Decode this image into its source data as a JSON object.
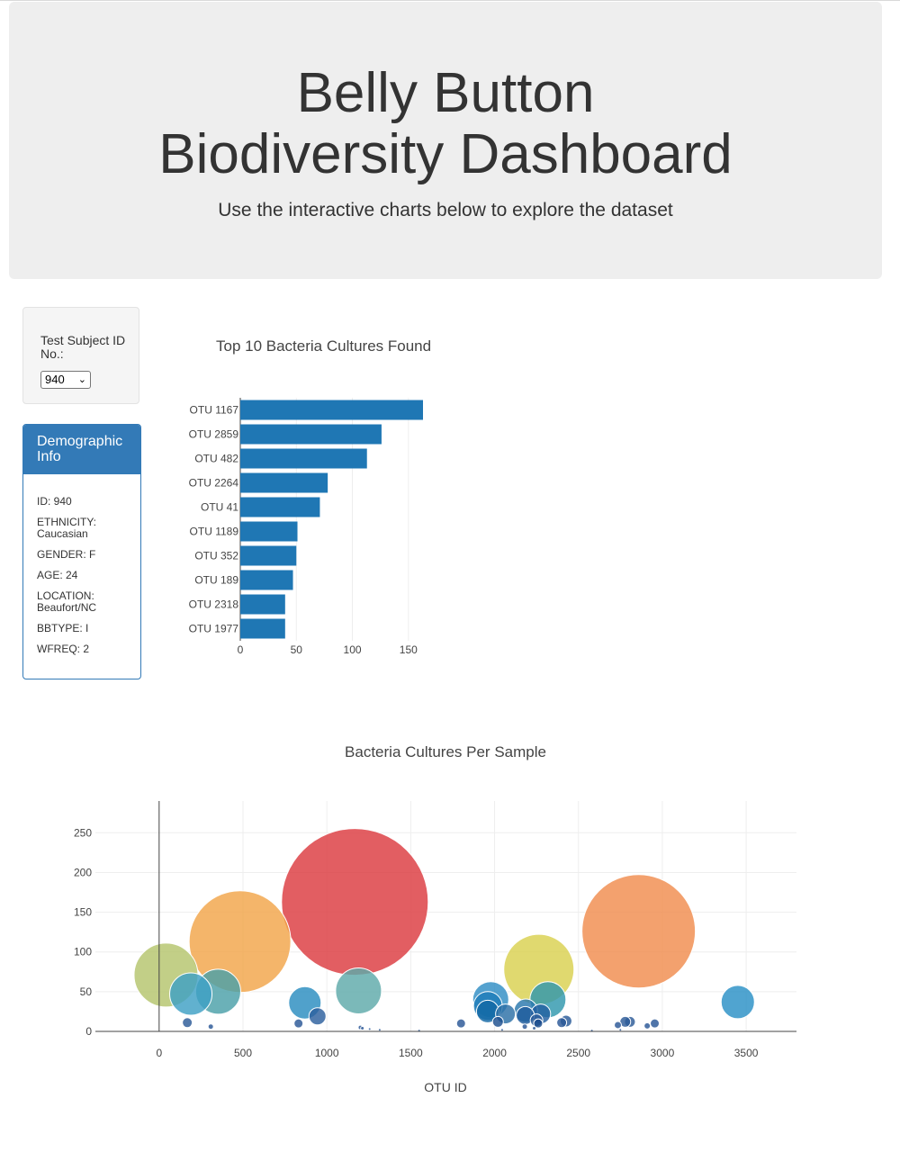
{
  "header": {
    "title": "Belly Button Biodiversity Dashboard",
    "subtitle": "Use the interactive charts below to explore the dataset"
  },
  "selector": {
    "label": "Test Subject ID No.:",
    "selected": "940"
  },
  "demographics": {
    "title": "Demographic Info",
    "items": [
      "ID: 940",
      "ETHNICITY: Caucasian",
      "GENDER: F",
      "AGE: 24",
      "LOCATION: Beaufort/NC",
      "BBTYPE: I",
      "WFREQ: 2"
    ]
  },
  "chart_data": [
    {
      "type": "bar",
      "orientation": "horizontal",
      "title": "Top 10 Bacteria Cultures Found",
      "categories": [
        "OTU 1167",
        "OTU 2859",
        "OTU 482",
        "OTU 2264",
        "OTU 41",
        "OTU 1189",
        "OTU 352",
        "OTU 189",
        "OTU 2318",
        "OTU 1977"
      ],
      "values": [
        163,
        126,
        113,
        78,
        71,
        51,
        50,
        47,
        40,
        40
      ],
      "xlim": [
        0,
        163
      ],
      "xticks": [
        0,
        50,
        100,
        150
      ],
      "color": "#1f77b4"
    },
    {
      "type": "scatter",
      "title": "Bacteria Cultures Per Sample",
      "xlabel": "OTU ID",
      "xlim": [
        -380,
        3800
      ],
      "ylim": [
        0,
        290
      ],
      "xticks": [
        0,
        500,
        1000,
        1500,
        2000,
        2500,
        3000,
        3500
      ],
      "yticks": [
        0,
        50,
        100,
        150,
        200,
        250
      ],
      "points": [
        {
          "x": 1167,
          "y": 163,
          "color": "#dc3a40"
        },
        {
          "x": 2859,
          "y": 126,
          "color": "#f08c4e"
        },
        {
          "x": 482,
          "y": 113,
          "color": "#f2a549"
        },
        {
          "x": 2264,
          "y": 78,
          "color": "#d9d14f"
        },
        {
          "x": 41,
          "y": 71,
          "color": "#b5c46c"
        },
        {
          "x": 1189,
          "y": 51,
          "color": "#5ea9aa"
        },
        {
          "x": 352,
          "y": 50,
          "color": "#4aa0a8"
        },
        {
          "x": 189,
          "y": 47,
          "color": "#3ea0c4"
        },
        {
          "x": 2318,
          "y": 40,
          "color": "#2f97ad"
        },
        {
          "x": 1977,
          "y": 40,
          "color": "#2f8ec4"
        },
        {
          "x": 3450,
          "y": 37,
          "color": "#2a90c6"
        },
        {
          "x": 869,
          "y": 36,
          "color": "#2a8cc0"
        },
        {
          "x": 1960,
          "y": 32,
          "color": "#1f7db8"
        },
        {
          "x": 2186,
          "y": 26,
          "color": "#2a78ad"
        },
        {
          "x": 1959,
          "y": 25,
          "color": "#1268a5"
        },
        {
          "x": 2065,
          "y": 22,
          "color": "#2b6fa6"
        },
        {
          "x": 2275,
          "y": 22,
          "color": "#225fa0"
        },
        {
          "x": 2183,
          "y": 20,
          "color": "#1e5b9c"
        },
        {
          "x": 944,
          "y": 19,
          "color": "#2c5f9e"
        },
        {
          "x": 2250,
          "y": 14,
          "color": "#2a5b9a"
        },
        {
          "x": 2426,
          "y": 13,
          "color": "#2a5a98"
        },
        {
          "x": 2020,
          "y": 12,
          "color": "#1d4f8f"
        },
        {
          "x": 2807,
          "y": 12,
          "color": "#2c5a97"
        },
        {
          "x": 2779,
          "y": 12,
          "color": "#2c5a97"
        },
        {
          "x": 168,
          "y": 11,
          "color": "#2c5a97"
        },
        {
          "x": 2400,
          "y": 11,
          "color": "#2a5796"
        },
        {
          "x": 2260,
          "y": 10,
          "color": "#1b4c8c"
        },
        {
          "x": 2955,
          "y": 10,
          "color": "#2a5796"
        },
        {
          "x": 831,
          "y": 10,
          "color": "#2a5796"
        },
        {
          "x": 1800,
          "y": 10,
          "color": "#2a5796"
        },
        {
          "x": 2735,
          "y": 8,
          "color": "#2a5796"
        },
        {
          "x": 2910,
          "y": 7,
          "color": "#2a5796"
        },
        {
          "x": 308,
          "y": 6,
          "color": "#2a5796"
        },
        {
          "x": 2180,
          "y": 6,
          "color": "#2a5796"
        },
        {
          "x": 1200,
          "y": 5,
          "color": "#2a5796"
        },
        {
          "x": 1212,
          "y": 4,
          "color": "#2a5796"
        },
        {
          "x": 2236,
          "y": 4,
          "color": "#2a5796"
        },
        {
          "x": 1255,
          "y": 3,
          "color": "#2a5796"
        },
        {
          "x": 1315,
          "y": 2,
          "color": "#2a5796"
        },
        {
          "x": 2750,
          "y": 2,
          "color": "#2a5796"
        },
        {
          "x": 2045,
          "y": 2,
          "color": "#2a5796"
        },
        {
          "x": 2580,
          "y": 1,
          "color": "#2a5796"
        },
        {
          "x": 1550,
          "y": 1,
          "color": "#2a5796"
        }
      ]
    }
  ]
}
